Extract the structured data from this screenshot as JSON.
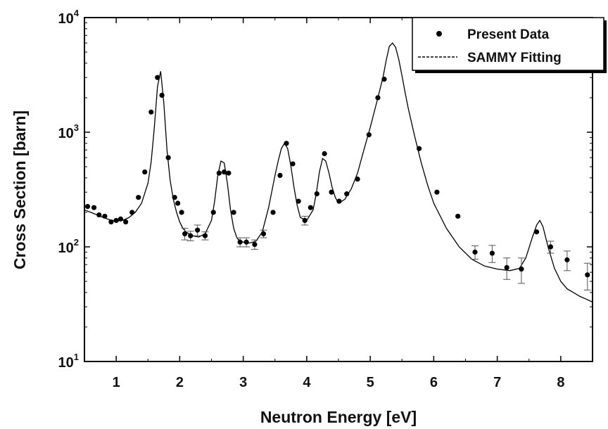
{
  "chart_data": {
    "type": "scatter",
    "title": "",
    "xlabel": "Neutron Energy [eV]",
    "ylabel": "Cross Section [barn]",
    "xlim": [
      0.5,
      8.5
    ],
    "ylim": [
      10,
      10000
    ],
    "yscale": "log",
    "grid": false,
    "legend_position": "top-right",
    "x_ticks": [
      {
        "value": 1,
        "label": "1"
      },
      {
        "value": 2,
        "label": "2"
      },
      {
        "value": 3,
        "label": "3"
      },
      {
        "value": 4,
        "label": "4"
      },
      {
        "value": 5,
        "label": "5"
      },
      {
        "value": 6,
        "label": "6"
      },
      {
        "value": 7,
        "label": "7"
      },
      {
        "value": 8,
        "label": "8"
      }
    ],
    "y_ticks": [
      {
        "value": 10,
        "base": "10",
        "exp": "1"
      },
      {
        "value": 100,
        "base": "10",
        "exp": "2"
      },
      {
        "value": 1000,
        "base": "10",
        "exp": "3"
      },
      {
        "value": 10000,
        "base": "10",
        "exp": "4"
      }
    ],
    "series": [
      {
        "name": "Present Data",
        "kind": "points",
        "color": "#000000",
        "x": [
          0.55,
          0.65,
          0.73,
          0.82,
          0.92,
          1.0,
          1.07,
          1.15,
          1.25,
          1.35,
          1.45,
          1.55,
          1.65,
          1.72,
          1.82,
          1.92,
          1.97,
          2.03,
          2.08,
          2.17,
          2.28,
          2.4,
          2.53,
          2.62,
          2.7,
          2.77,
          2.85,
          2.95,
          3.05,
          3.18,
          3.32,
          3.47,
          3.58,
          3.68,
          3.78,
          3.87,
          3.97,
          4.06,
          4.16,
          4.28,
          4.39,
          4.51,
          4.63,
          4.8,
          4.98,
          5.12,
          5.22,
          5.77,
          6.05,
          6.38,
          6.65,
          6.92,
          7.15,
          7.38,
          7.62,
          7.84,
          8.1,
          8.42
        ],
        "y": [
          225,
          220,
          190,
          185,
          165,
          170,
          175,
          165,
          200,
          270,
          450,
          1500,
          3000,
          2100,
          600,
          270,
          240,
          200,
          130,
          125,
          140,
          125,
          200,
          440,
          450,
          440,
          200,
          110,
          110,
          105,
          130,
          200,
          420,
          800,
          530,
          250,
          170,
          220,
          290,
          650,
          300,
          250,
          290,
          390,
          950,
          2000,
          2900,
          720,
          300,
          185,
          90,
          88,
          66,
          64,
          135,
          100,
          77,
          57
        ],
        "err": [
          0,
          0,
          0,
          0,
          0,
          0,
          0,
          0,
          0,
          0,
          0,
          0,
          0,
          0,
          0,
          0,
          0,
          0,
          15,
          12,
          15,
          10,
          0,
          0,
          0,
          0,
          0,
          10,
          10,
          10,
          10,
          0,
          0,
          0,
          0,
          0,
          15,
          0,
          0,
          0,
          0,
          0,
          0,
          0,
          0,
          0,
          0,
          0,
          0,
          0,
          12,
          15,
          14,
          16,
          0,
          12,
          15,
          15
        ]
      },
      {
        "name": "SAMMY Fitting",
        "kind": "line",
        "color": "#000000",
        "x": [
          0.5,
          0.6,
          0.7,
          0.8,
          0.9,
          1.0,
          1.1,
          1.2,
          1.3,
          1.4,
          1.5,
          1.55,
          1.6,
          1.65,
          1.7,
          1.75,
          1.8,
          1.85,
          1.9,
          1.95,
          2.0,
          2.05,
          2.1,
          2.2,
          2.3,
          2.4,
          2.5,
          2.55,
          2.6,
          2.65,
          2.7,
          2.75,
          2.8,
          2.85,
          2.9,
          2.95,
          3.0,
          3.1,
          3.2,
          3.3,
          3.4,
          3.5,
          3.55,
          3.6,
          3.65,
          3.7,
          3.75,
          3.8,
          3.85,
          3.9,
          4.0,
          4.1,
          4.15,
          4.2,
          4.25,
          4.3,
          4.35,
          4.4,
          4.45,
          4.5,
          4.6,
          4.7,
          4.8,
          4.9,
          5.0,
          5.1,
          5.2,
          5.25,
          5.3,
          5.35,
          5.4,
          5.45,
          5.5,
          5.55,
          5.6,
          5.7,
          5.8,
          5.9,
          6.0,
          6.2,
          6.4,
          6.6,
          6.8,
          7.0,
          7.2,
          7.35,
          7.45,
          7.55,
          7.62,
          7.67,
          7.72,
          7.8,
          7.9,
          8.0,
          8.1,
          8.2,
          8.3,
          8.4,
          8.5
        ],
        "y": [
          210,
          200,
          190,
          180,
          172,
          168,
          170,
          180,
          200,
          240,
          360,
          550,
          1100,
          2500,
          3400,
          1800,
          700,
          380,
          260,
          200,
          165,
          145,
          135,
          125,
          122,
          130,
          170,
          250,
          420,
          560,
          540,
          360,
          210,
          145,
          120,
          112,
          110,
          108,
          112,
          135,
          220,
          420,
          560,
          720,
          800,
          720,
          510,
          330,
          230,
          180,
          170,
          210,
          290,
          450,
          590,
          560,
          440,
          330,
          270,
          240,
          260,
          320,
          440,
          700,
          1100,
          1800,
          3000,
          4200,
          5600,
          6000,
          5500,
          4300,
          3100,
          2200,
          1600,
          920,
          550,
          350,
          240,
          145,
          100,
          78,
          68,
          64,
          62,
          65,
          80,
          120,
          155,
          170,
          150,
          100,
          65,
          50,
          43,
          40,
          37,
          35,
          33
        ]
      }
    ]
  }
}
